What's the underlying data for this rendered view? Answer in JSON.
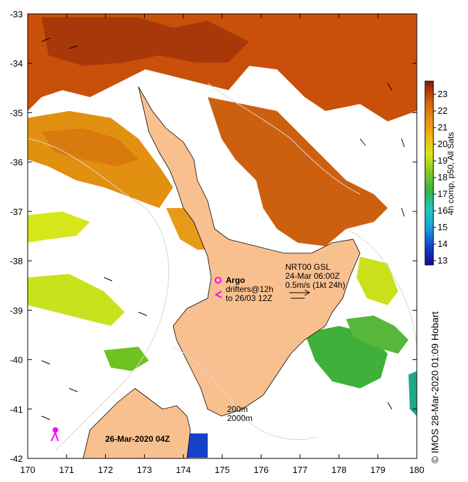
{
  "map": {
    "lon_ticks": [
      "170",
      "171",
      "172",
      "173",
      "174",
      "175",
      "176",
      "177",
      "178",
      "179",
      "180"
    ],
    "lat_ticks": [
      "-33",
      "-34",
      "-35",
      "-36",
      "-37",
      "-38",
      "-39",
      "-40",
      "-41",
      "-42"
    ],
    "date_stamp": "26-Mar-2020 04Z",
    "argo_label": "Argo",
    "drifters_line1": "drifters@12h",
    "drifters_line2": "to 26/03 12Z",
    "current_model": "NRT00 GSL",
    "current_time": "24-Mar 06:00Z",
    "current_scale": "0.5m/s (1kt 24h)",
    "isobath_200": "200m",
    "isobath_2000": "2000m"
  },
  "colorbar": {
    "title": "4h comp, p50, All Sats",
    "ticks": [
      "13",
      "14",
      "15",
      "16",
      "17",
      "18",
      "19",
      "20",
      "21",
      "22",
      "23"
    ]
  },
  "credit": "© IMOS 28-Mar-2020 01:09 Hobart",
  "colors": {
    "land": "#f9c08f",
    "warm": "#c8500a",
    "mid": "#e79a1a",
    "cool": "#c9e21e",
    "green": "#3fb13a",
    "argo": "#ff00ff"
  }
}
